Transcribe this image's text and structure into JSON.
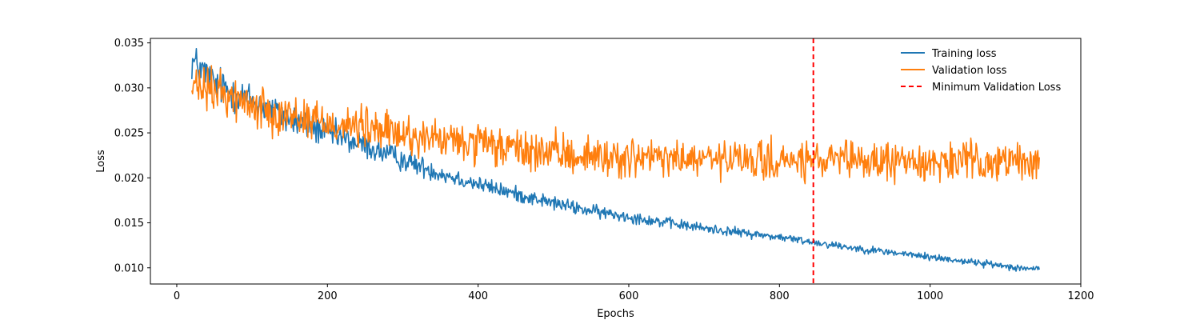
{
  "chart_data": {
    "type": "line",
    "title": "",
    "xlabel": "Epochs",
    "ylabel": "Loss",
    "xlim": [
      -35,
      1200
    ],
    "ylim": [
      0.0082,
      0.0355
    ],
    "x_ticks": [
      0,
      200,
      400,
      600,
      800,
      1000,
      1200
    ],
    "y_ticks": [
      0.01,
      0.015,
      0.02,
      0.025,
      0.03,
      0.035
    ],
    "x_tick_labels": [
      "0",
      "200",
      "400",
      "600",
      "800",
      "1000",
      "1200"
    ],
    "y_tick_labels": [
      "0.010",
      "0.015",
      "0.020",
      "0.025",
      "0.030",
      "0.035"
    ],
    "grid": false,
    "legend_position": "top-right",
    "series": [
      {
        "name": "Training loss",
        "color": "#1f77b4",
        "style": "solid",
        "x_range": [
          20,
          1145
        ],
        "keypoints": [
          [
            20,
            0.033
          ],
          [
            50,
            0.0305
          ],
          [
            100,
            0.0285
          ],
          [
            150,
            0.0265
          ],
          [
            200,
            0.025
          ],
          [
            250,
            0.0235
          ],
          [
            300,
            0.022
          ],
          [
            350,
            0.0205
          ],
          [
            400,
            0.0193
          ],
          [
            450,
            0.0182
          ],
          [
            500,
            0.0172
          ],
          [
            550,
            0.0163
          ],
          [
            600,
            0.0157
          ],
          [
            650,
            0.015
          ],
          [
            700,
            0.0144
          ],
          [
            750,
            0.0139
          ],
          [
            800,
            0.0134
          ],
          [
            850,
            0.0128
          ],
          [
            900,
            0.0122
          ],
          [
            950,
            0.0117
          ],
          [
            1000,
            0.0112
          ],
          [
            1050,
            0.0107
          ],
          [
            1100,
            0.0102
          ],
          [
            1145,
            0.0098
          ]
        ],
        "noise_amplitude": [
          [
            20,
            0.003
          ],
          [
            200,
            0.0022
          ],
          [
            400,
            0.0012
          ],
          [
            800,
            0.0006
          ],
          [
            1145,
            0.0005
          ]
        ]
      },
      {
        "name": "Validation loss",
        "color": "#ff7f0e",
        "style": "solid",
        "x_range": [
          20,
          1145
        ],
        "keypoints": [
          [
            20,
            0.03
          ],
          [
            60,
            0.0295
          ],
          [
            100,
            0.028
          ],
          [
            150,
            0.027
          ],
          [
            200,
            0.0262
          ],
          [
            250,
            0.0255
          ],
          [
            300,
            0.0248
          ],
          [
            350,
            0.0242
          ],
          [
            400,
            0.0237
          ],
          [
            450,
            0.0231
          ],
          [
            500,
            0.0227
          ],
          [
            550,
            0.0224
          ],
          [
            600,
            0.0222
          ],
          [
            700,
            0.022
          ],
          [
            800,
            0.0218
          ],
          [
            900,
            0.0218
          ],
          [
            1000,
            0.0218
          ],
          [
            1145,
            0.0218
          ]
        ],
        "noise_amplitude": [
          [
            20,
            0.0033
          ],
          [
            400,
            0.003
          ],
          [
            1145,
            0.0028
          ]
        ]
      },
      {
        "name": "Minimum Validation Loss",
        "color": "#ff0000",
        "style": "dashed",
        "vertical_line_x": 845
      }
    ]
  }
}
